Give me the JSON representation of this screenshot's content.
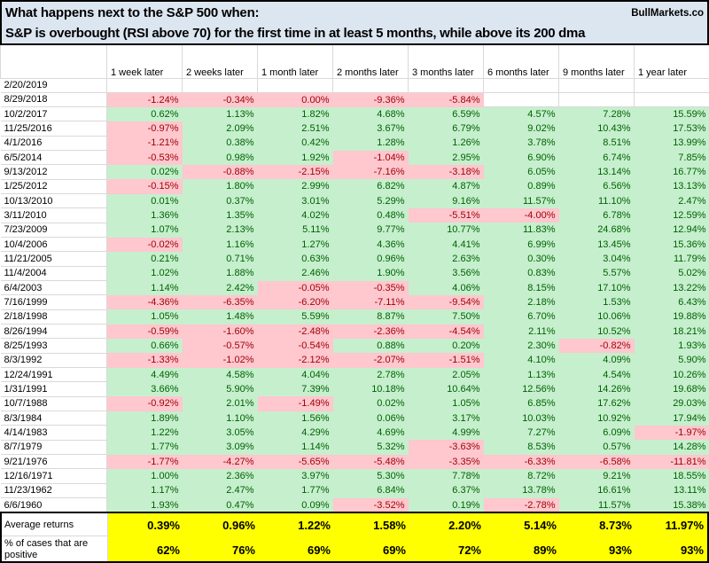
{
  "colors": {
    "banner-bg": "#dce6f1",
    "positive-bg": "#c6efce",
    "positive-text": "#006100",
    "negative-bg": "#ffc7ce",
    "negative-text": "#9c0006",
    "summary-bg": "#ffff00",
    "gridline": "#d9d9d9",
    "border": "#000000"
  },
  "chart_data": {
    "type": "table",
    "title": "What happens next to the S&P 500 when:",
    "subtitle": "S&P is overbought (RSI above 70) for the first time in at least 5 months, while above its 200 dma",
    "source": "BullMarkets.co",
    "columns": [
      "1 week later",
      "2 weeks later",
      "1 month later",
      "2 months later",
      "3 months later",
      "6 months later",
      "9 months later",
      "1 year later"
    ],
    "rows": [
      {
        "date": "2/20/2019",
        "values": [
          "",
          "",
          "",
          "",
          "",
          "",
          "",
          ""
        ],
        "fills": "eeeeeeee"
      },
      {
        "date": "8/29/2018",
        "values": [
          "-1.24%",
          "-0.34%",
          "0.00%",
          "-9.36%",
          "-5.84%",
          "",
          "",
          ""
        ],
        "fills": "nnnnneee"
      },
      {
        "date": "10/2/2017",
        "values": [
          "0.62%",
          "1.13%",
          "1.82%",
          "4.68%",
          "6.59%",
          "4.57%",
          "7.28%",
          "15.59%"
        ],
        "fills": "pppppppp"
      },
      {
        "date": "11/25/2016",
        "values": [
          "-0.97%",
          "2.09%",
          "2.51%",
          "3.67%",
          "6.79%",
          "9.02%",
          "10.43%",
          "17.53%"
        ],
        "fills": "nppppppp"
      },
      {
        "date": "4/1/2016",
        "values": [
          "-1.21%",
          "0.38%",
          "0.42%",
          "1.28%",
          "1.26%",
          "3.78%",
          "8.51%",
          "13.99%"
        ],
        "fills": "nppppppp"
      },
      {
        "date": "6/5/2014",
        "values": [
          "-0.53%",
          "0.98%",
          "1.92%",
          "-1.04%",
          "2.95%",
          "6.90%",
          "6.74%",
          "7.85%"
        ],
        "fills": "nppnpppp"
      },
      {
        "date": "9/13/2012",
        "values": [
          "0.02%",
          "-0.88%",
          "-2.15%",
          "-7.16%",
          "-3.18%",
          "6.05%",
          "13.14%",
          "16.77%"
        ],
        "fills": "pnnnnppp"
      },
      {
        "date": "1/25/2012",
        "values": [
          "-0.15%",
          "1.80%",
          "2.99%",
          "6.82%",
          "4.87%",
          "0.89%",
          "6.56%",
          "13.13%"
        ],
        "fills": "nppppppp"
      },
      {
        "date": "10/13/2010",
        "values": [
          "0.01%",
          "0.37%",
          "3.01%",
          "5.29%",
          "9.16%",
          "11.57%",
          "11.10%",
          "2.47%"
        ],
        "fills": "pppppppp"
      },
      {
        "date": "3/11/2010",
        "values": [
          "1.36%",
          "1.35%",
          "4.02%",
          "0.48%",
          "-5.51%",
          "-4.00%",
          "6.78%",
          "12.59%"
        ],
        "fills": "ppppnnpp"
      },
      {
        "date": "7/23/2009",
        "values": [
          "1.07%",
          "2.13%",
          "5.11%",
          "9.77%",
          "10.77%",
          "11.83%",
          "24.68%",
          "12.94%"
        ],
        "fills": "pppppppp"
      },
      {
        "date": "10/4/2006",
        "values": [
          "-0.02%",
          "1.16%",
          "1.27%",
          "4.36%",
          "4.41%",
          "6.99%",
          "13.45%",
          "15.36%"
        ],
        "fills": "nppppppp"
      },
      {
        "date": "11/21/2005",
        "values": [
          "0.21%",
          "0.71%",
          "0.63%",
          "0.96%",
          "2.63%",
          "0.30%",
          "3.04%",
          "11.79%"
        ],
        "fills": "pppppppp"
      },
      {
        "date": "11/4/2004",
        "values": [
          "1.02%",
          "1.88%",
          "2.46%",
          "1.90%",
          "3.56%",
          "0.83%",
          "5.57%",
          "5.02%"
        ],
        "fills": "pppppppp"
      },
      {
        "date": "6/4/2003",
        "values": [
          "1.14%",
          "2.42%",
          "-0.05%",
          "-0.35%",
          "4.06%",
          "8.15%",
          "17.10%",
          "13.22%"
        ],
        "fills": "ppnnpppp"
      },
      {
        "date": "7/16/1999",
        "values": [
          "-4.36%",
          "-6.35%",
          "-6.20%",
          "-7.11%",
          "-9.54%",
          "2.18%",
          "1.53%",
          "6.43%"
        ],
        "fills": "nnnnnppp"
      },
      {
        "date": "2/18/1998",
        "values": [
          "1.05%",
          "1.48%",
          "5.59%",
          "8.87%",
          "7.50%",
          "6.70%",
          "10.06%",
          "19.88%"
        ],
        "fills": "pppppppp"
      },
      {
        "date": "8/26/1994",
        "values": [
          "-0.59%",
          "-1.60%",
          "-2.48%",
          "-2.36%",
          "-4.54%",
          "2.11%",
          "10.52%",
          "18.21%"
        ],
        "fills": "nnnnnppp"
      },
      {
        "date": "8/25/1993",
        "values": [
          "0.66%",
          "-0.57%",
          "-0.54%",
          "0.88%",
          "0.20%",
          "2.30%",
          "-0.82%",
          "1.93%"
        ],
        "fills": "pnnpppnp"
      },
      {
        "date": "8/3/1992",
        "values": [
          "-1.33%",
          "-1.02%",
          "-2.12%",
          "-2.07%",
          "-1.51%",
          "4.10%",
          "4.09%",
          "5.90%"
        ],
        "fills": "nnnnnppp"
      },
      {
        "date": "12/24/1991",
        "values": [
          "4.49%",
          "4.58%",
          "4.04%",
          "2.78%",
          "2.05%",
          "1.13%",
          "4.54%",
          "10.26%"
        ],
        "fills": "pppppppp"
      },
      {
        "date": "1/31/1991",
        "values": [
          "3.66%",
          "5.90%",
          "7.39%",
          "10.18%",
          "10.64%",
          "12.56%",
          "14.26%",
          "19.68%"
        ],
        "fills": "pppppppp"
      },
      {
        "date": "10/7/1988",
        "values": [
          "-0.92%",
          "2.01%",
          "-1.49%",
          "0.02%",
          "1.05%",
          "6.85%",
          "17.62%",
          "29.03%"
        ],
        "fills": "npnppppp"
      },
      {
        "date": "8/3/1984",
        "values": [
          "1.89%",
          "1.10%",
          "1.56%",
          "0.06%",
          "3.17%",
          "10.03%",
          "10.92%",
          "17.94%"
        ],
        "fills": "pppppppp"
      },
      {
        "date": "4/14/1983",
        "values": [
          "1.22%",
          "3.05%",
          "4.29%",
          "4.69%",
          "4.99%",
          "7.27%",
          "6.09%",
          "-1.97%"
        ],
        "fills": "pppppppn"
      },
      {
        "date": "8/7/1979",
        "values": [
          "1.77%",
          "3.09%",
          "1.14%",
          "5.32%",
          "-3.63%",
          "8.53%",
          "0.57%",
          "14.28%"
        ],
        "fills": "ppppnppp"
      },
      {
        "date": "9/21/1976",
        "values": [
          "-1.77%",
          "-4.27%",
          "-5.65%",
          "-5.48%",
          "-3.35%",
          "-6.33%",
          "-6.58%",
          "-11.81%"
        ],
        "fills": "nnnnnnnn"
      },
      {
        "date": "12/16/1971",
        "values": [
          "1.00%",
          "2.36%",
          "3.97%",
          "5.30%",
          "7.78%",
          "8.72%",
          "9.21%",
          "18.55%"
        ],
        "fills": "pppppppp"
      },
      {
        "date": "11/23/1962",
        "values": [
          "1.17%",
          "2.47%",
          "1.77%",
          "6.84%",
          "6.37%",
          "13.78%",
          "16.61%",
          "13.11%"
        ],
        "fills": "pppppppp"
      },
      {
        "date": "6/6/1960",
        "values": [
          "1.93%",
          "0.47%",
          "0.09%",
          "-3.52%",
          "0.19%",
          "-2.78%",
          "11.57%",
          "15.38%"
        ],
        "fills": "pppnpnpp"
      }
    ],
    "summary_rows": [
      {
        "label": "Average returns",
        "values": [
          "0.39%",
          "0.96%",
          "1.22%",
          "1.58%",
          "2.20%",
          "5.14%",
          "8.73%",
          "11.97%"
        ]
      },
      {
        "label": "% of cases that are positive",
        "values": [
          "62%",
          "76%",
          "69%",
          "69%",
          "72%",
          "89%",
          "93%",
          "93%"
        ]
      }
    ],
    "legend": "green = positive return, pink = negative return, yellow = summary statistics",
    "grid": true
  }
}
